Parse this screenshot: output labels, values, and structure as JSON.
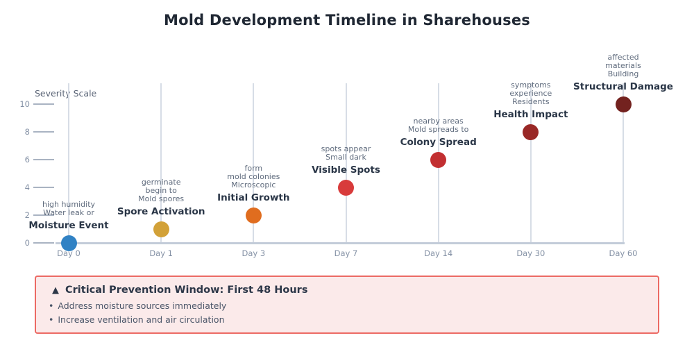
{
  "chart_data": {
    "type": "scatter",
    "title": "Mold Development Timeline in Sharehouses",
    "ylabel": "Severity Scale",
    "ylim": [
      0,
      10
    ],
    "yticks": [
      0,
      2,
      4,
      6,
      8,
      10
    ],
    "grid": "vertical-category-lines",
    "legend": "none",
    "x_categories": [
      "Day 0",
      "Day 1",
      "Day 3",
      "Day 7",
      "Day 14",
      "Day 30",
      "Day 60"
    ],
    "events": [
      {
        "day_label": "Day 0",
        "title": "Moisture Event",
        "severity": 0,
        "color": "#3182c4",
        "desc_lines": [
          "high humidity",
          "Water leak or"
        ]
      },
      {
        "day_label": "Day 1",
        "title": "Spore Activation",
        "severity": 1,
        "color": "#d2a138",
        "desc_lines": [
          "germinate",
          "begin to",
          "Mold spores"
        ]
      },
      {
        "day_label": "Day 3",
        "title": "Initial Growth",
        "severity": 2,
        "color": "#e06d1f",
        "desc_lines": [
          "form",
          "mold colonies",
          "Microscopic"
        ]
      },
      {
        "day_label": "Day 7",
        "title": "Visible Spots",
        "severity": 4,
        "color": "#d83b3b",
        "desc_lines": [
          "spots appear",
          "Small dark"
        ]
      },
      {
        "day_label": "Day 14",
        "title": "Colony Spread",
        "severity": 6,
        "color": "#c22f31",
        "desc_lines": [
          "nearby areas",
          "Mold spreads to"
        ]
      },
      {
        "day_label": "Day 30",
        "title": "Health Impact",
        "severity": 8,
        "color": "#992826",
        "desc_lines": [
          "symptoms",
          "experience",
          "Residents"
        ]
      },
      {
        "day_label": "Day 60",
        "title": "Structural Damage",
        "severity": 10,
        "color": "#73221f",
        "desc_lines": [
          "affected",
          "materials",
          "Building"
        ]
      }
    ]
  },
  "note": {
    "icon": {
      "name": "warning-triangle-icon",
      "glyph": "▲"
    },
    "title": "Critical Prevention Window: First 48 Hours",
    "bullet": "•",
    "items": [
      "Address moisture sources immediately",
      "Increase ventilation and air circulation"
    ],
    "colors": {
      "background": "#fbeaea",
      "border": "#ec6a64"
    }
  }
}
